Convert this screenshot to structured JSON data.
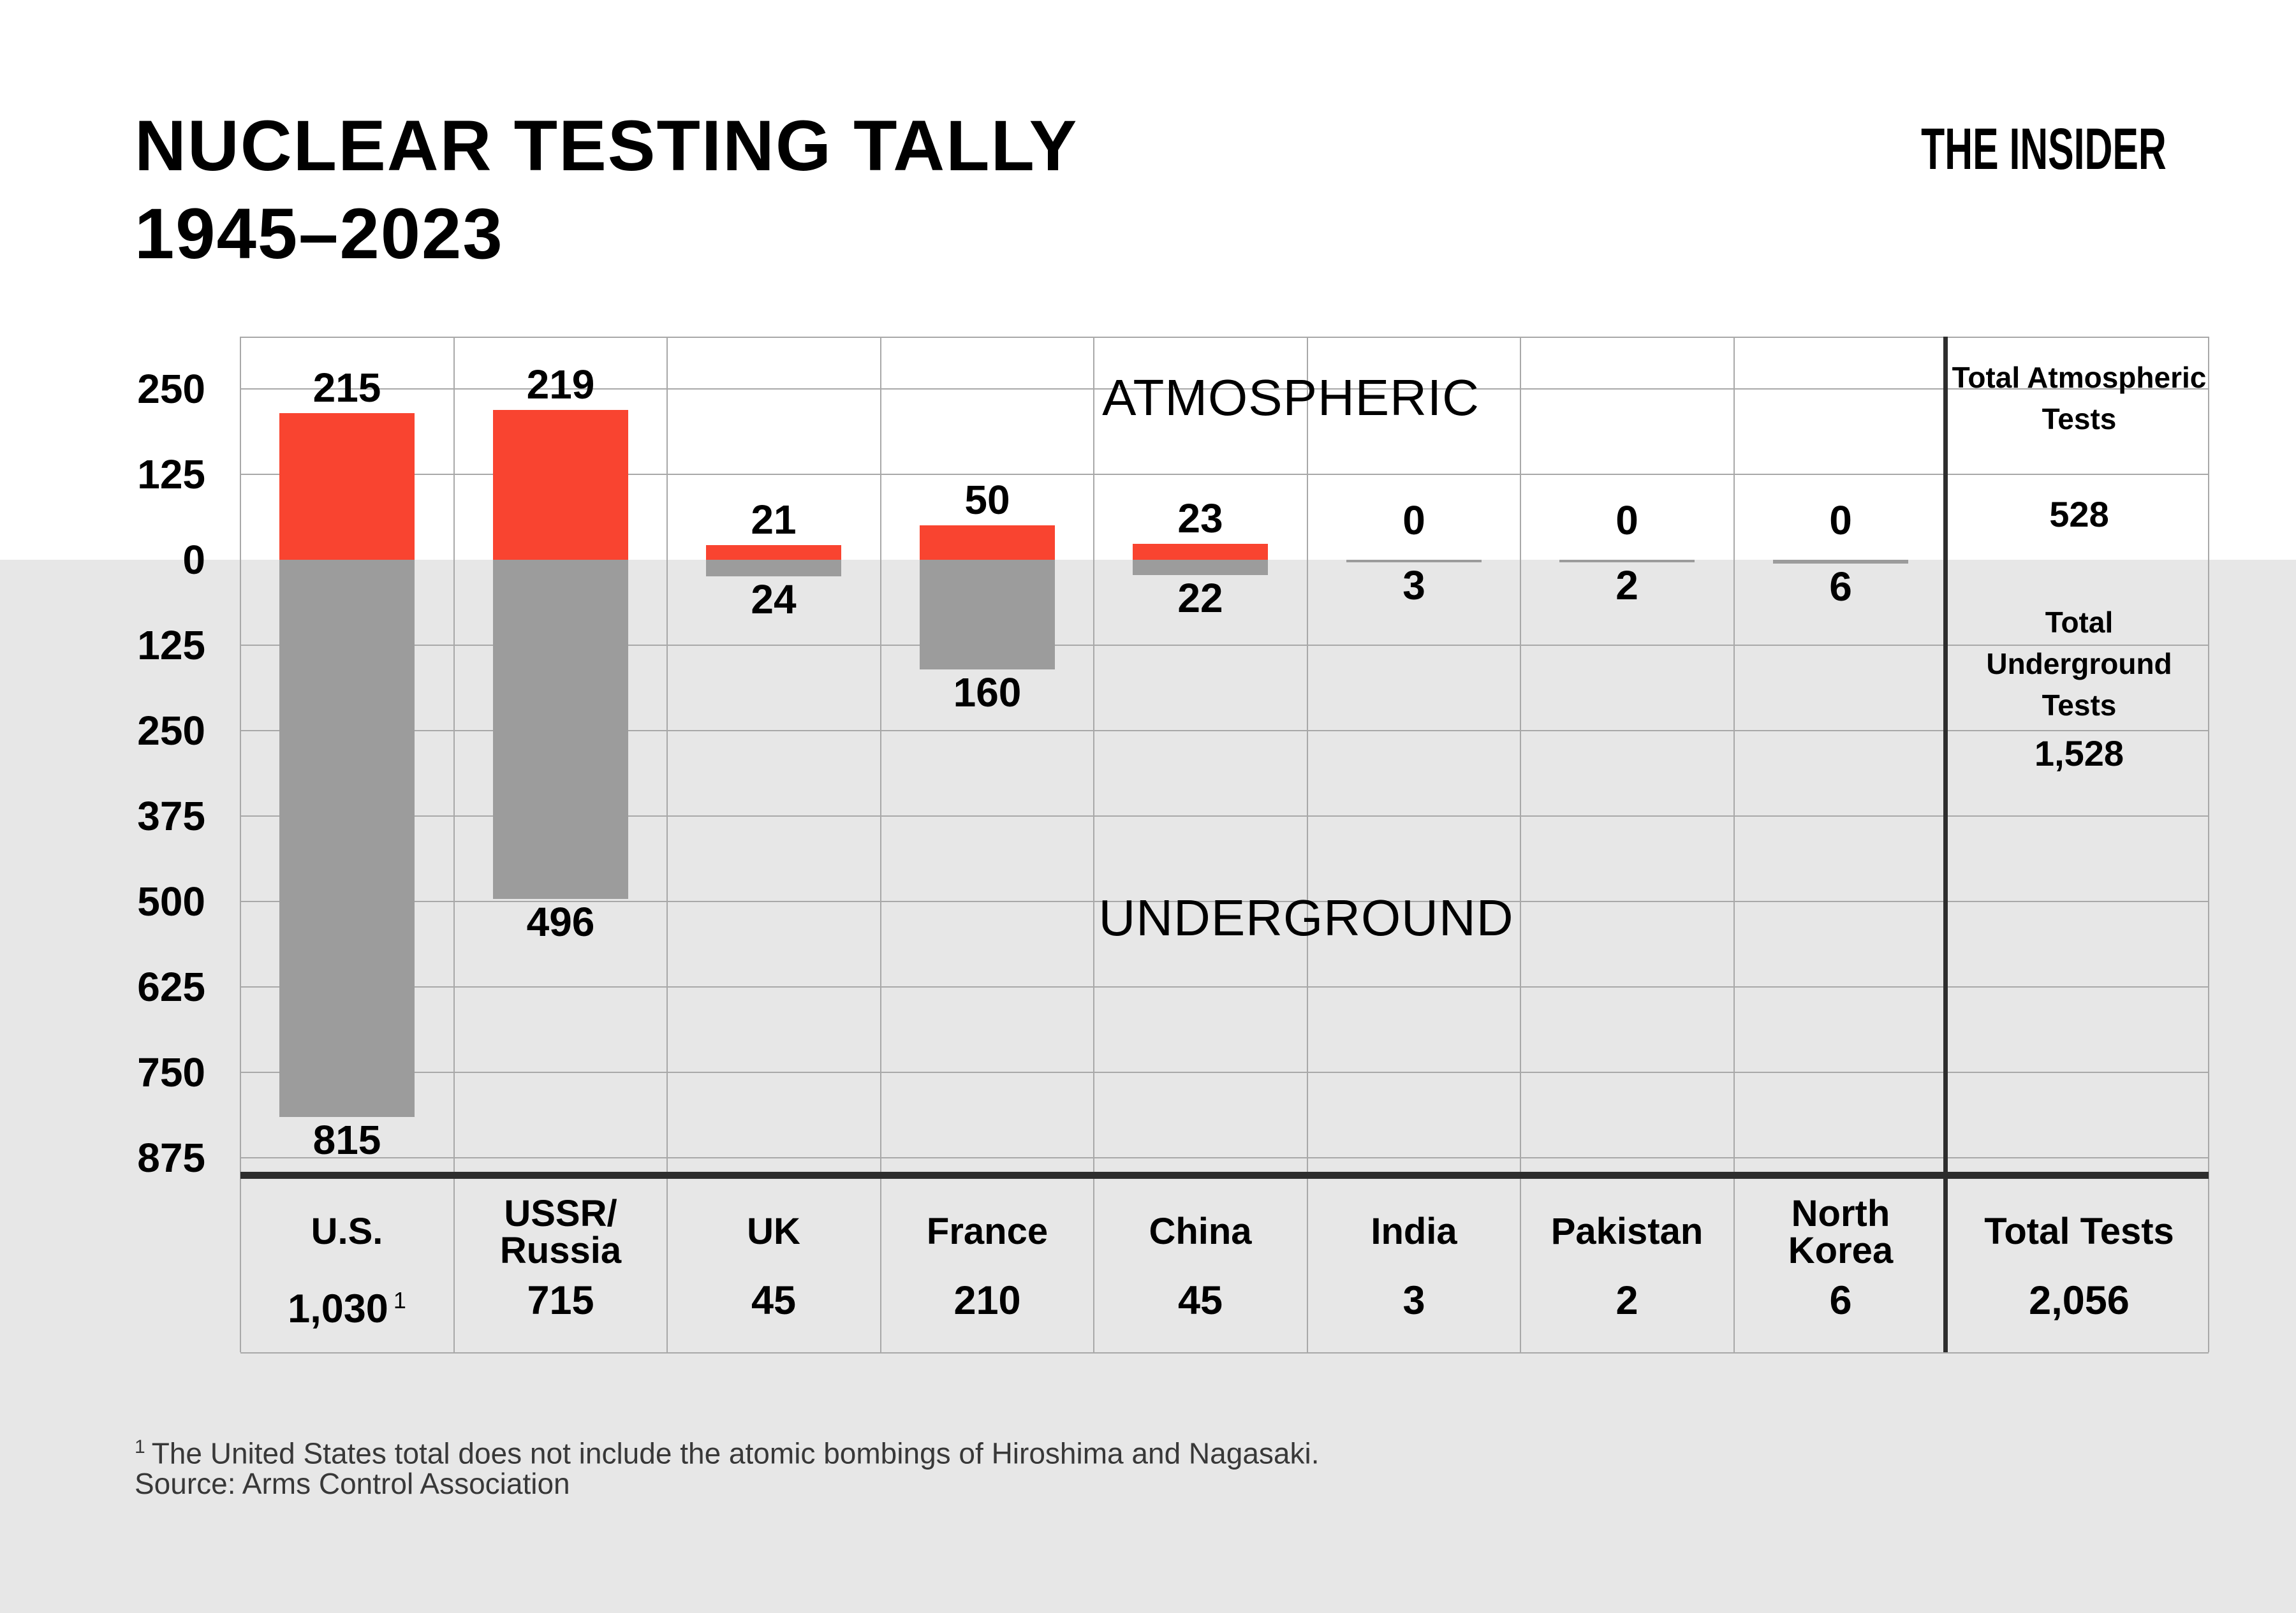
{
  "header": {
    "title_line1": "NUCLEAR TESTING TALLY",
    "title_line2": "1945–2023",
    "brand": "THE INSIDER"
  },
  "chart_data": {
    "type": "bar",
    "subtype": "diverging-stacked-columns",
    "title": "NUCLEAR TESTING TALLY 1945–2023",
    "categories": [
      "U.S.",
      "USSR/Russia",
      "UK",
      "France",
      "China",
      "India",
      "Pakistan",
      "North Korea"
    ],
    "category_lines": [
      [
        "U.S."
      ],
      [
        "USSR/",
        "Russia"
      ],
      [
        "UK"
      ],
      [
        "France"
      ],
      [
        "China"
      ],
      [
        "India"
      ],
      [
        "Pakistan"
      ],
      [
        "North",
        "Korea"
      ]
    ],
    "series": [
      {
        "name": "Atmospheric",
        "direction": "up",
        "color": "#f94430",
        "values": [
          215,
          219,
          21,
          50,
          23,
          0,
          0,
          0
        ]
      },
      {
        "name": "Underground",
        "direction": "down",
        "color": "#9c9c9c",
        "values": [
          815,
          496,
          24,
          160,
          22,
          3,
          2,
          6
        ]
      }
    ],
    "country_totals": [
      "1,030",
      "715",
      "45",
      "210",
      "45",
      "3",
      "2",
      "6"
    ],
    "total_marks": [
      "1",
      "",
      "",
      "",
      "",
      "",
      "",
      ""
    ],
    "axis": {
      "tick_labels": [
        "250",
        "125",
        "0",
        "125",
        "250",
        "375",
        "500",
        "625",
        "750",
        "875"
      ],
      "tick_values": [
        250,
        125,
        0,
        -125,
        -250,
        -375,
        -500,
        -625,
        -750,
        -875
      ],
      "ylim": [
        340,
        -950
      ],
      "grid": true
    },
    "region_labels": {
      "atmospheric": "ATMOSPHERIC",
      "underground": "UNDERGROUND"
    },
    "summary": {
      "atmo_title": "Total Atmospheric Tests",
      "atmo_value": "528",
      "under_title": "Total Underground Tests",
      "under_value": "1,528",
      "total_label": "Total Tests",
      "total_value": "2,056"
    }
  },
  "footnote": {
    "marker": "1",
    "line1": "The United States total does not include the atomic bombings of Hiroshima and Nagasaki.",
    "line2": "Source: Arms Control Association"
  },
  "colors": {
    "atmospheric_red": "#f94430",
    "underground_gray": "#9c9c9c",
    "lower_background": "#e7e7e7",
    "gridline": "#a8a8a8",
    "dark_line": "#2e2e2e",
    "footnote_text": "#383838"
  }
}
